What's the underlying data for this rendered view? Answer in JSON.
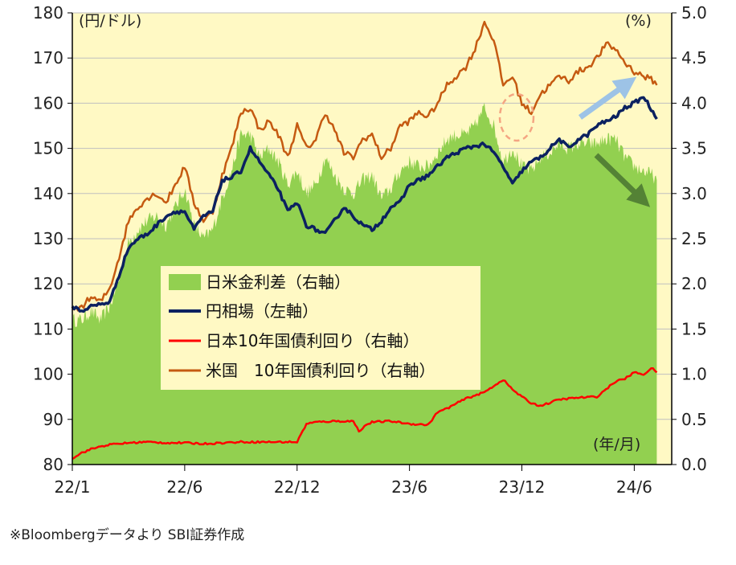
{
  "chart_data": {
    "type": "line",
    "title": "",
    "left_axis": {
      "unit": "(円/ドル)",
      "min": 80,
      "max": 180,
      "step": 10,
      "ticks": [
        "80",
        "90",
        "100",
        "110",
        "120",
        "130",
        "140",
        "150",
        "160",
        "170",
        "180"
      ]
    },
    "right_axis": {
      "unit": "(%)",
      "min": 0.0,
      "max": 5.0,
      "step": 0.5,
      "ticks": [
        "0.0",
        "0.5",
        "1.0",
        "1.5",
        "2.0",
        "2.5",
        "3.0",
        "3.5",
        "4.0",
        "4.5",
        "5.0"
      ]
    },
    "x_axis": {
      "unit": "(年/月)",
      "min_month": 0,
      "max_month": 32,
      "ticks": [
        {
          "label": "22/1",
          "month": 0
        },
        {
          "label": "22/6",
          "month": 6
        },
        {
          "label": "22/12",
          "month": 12
        },
        {
          "label": "23/6",
          "month": 18
        },
        {
          "label": "23/12",
          "month": 24
        },
        {
          "label": "24/6",
          "month": 30
        }
      ]
    },
    "legend": [
      "日米金利差（右軸）",
      "円相場（左軸）",
      "日本10年国債利回り（右軸）",
      "米国　10年国債利回り（右軸）"
    ],
    "colors": {
      "spread": "#92d050",
      "usdjpy": "#0b2160",
      "jgb": "#ff0000",
      "ust": "#c55a11",
      "plot_bg": "#fff9c4",
      "arrow_up": "#9dc3e6",
      "arrow_down": "#548235",
      "circle": "#f4a582"
    },
    "series": [
      {
        "name": "円相場",
        "axis": "left",
        "x": [
          0,
          0.5,
          1,
          1.5,
          2,
          2.5,
          3,
          3.5,
          4,
          4.5,
          5,
          5.5,
          6,
          6.5,
          7,
          7.5,
          8,
          8.5,
          9,
          9.5,
          10,
          10.5,
          11,
          11.5,
          12,
          12.5,
          13,
          13.5,
          14,
          14.5,
          15,
          15.5,
          16,
          16.5,
          17,
          17.5,
          18,
          18.5,
          19,
          19.5,
          20,
          20.5,
          21,
          21.5,
          22,
          22.5,
          23,
          23.5,
          24,
          24.5,
          25,
          25.5,
          26,
          26.5,
          27,
          27.5,
          28,
          28.5,
          29,
          29.5,
          30,
          30.5,
          31,
          31.2
        ],
        "values": [
          115,
          114,
          115,
          115.5,
          116,
          122,
          128,
          130,
          131,
          133,
          135,
          136,
          136,
          132,
          135,
          136,
          143,
          143.5,
          145,
          150,
          147,
          144,
          141,
          136,
          138,
          133,
          132,
          131,
          134,
          137,
          135,
          133,
          132,
          134,
          137,
          138,
          142,
          143,
          144,
          146,
          148,
          149,
          150,
          150.5,
          151,
          149,
          146,
          142,
          145,
          147,
          148,
          150,
          152,
          150,
          152,
          153,
          155,
          156,
          157,
          159,
          160,
          161.5,
          158,
          156.5
        ]
      },
      {
        "name": "日本10年国債利回り",
        "axis": "right",
        "x": [
          0,
          0.5,
          1,
          1.5,
          2,
          3,
          4,
          5,
          6,
          7,
          8,
          9,
          10,
          11,
          12,
          12.5,
          13,
          14,
          15,
          15.3,
          15.7,
          16,
          17,
          18,
          19,
          19.5,
          20,
          21,
          22,
          22.5,
          23,
          23.5,
          24,
          24.5,
          25,
          26,
          27,
          28,
          29,
          29.5,
          30,
          30.5,
          31,
          31.2
        ],
        "values": [
          0.07,
          0.13,
          0.17,
          0.2,
          0.22,
          0.24,
          0.25,
          0.24,
          0.24,
          0.23,
          0.24,
          0.25,
          0.25,
          0.25,
          0.25,
          0.45,
          0.47,
          0.48,
          0.48,
          0.37,
          0.44,
          0.47,
          0.48,
          0.45,
          0.44,
          0.58,
          0.62,
          0.73,
          0.8,
          0.87,
          0.94,
          0.83,
          0.75,
          0.68,
          0.65,
          0.72,
          0.74,
          0.75,
          0.92,
          0.95,
          1.02,
          1.0,
          1.07,
          1.02
        ]
      },
      {
        "name": "米国10年国債利回り",
        "axis": "right",
        "x": [
          0,
          0.5,
          1,
          1.5,
          2,
          2.5,
          3,
          3.5,
          4,
          4.5,
          5,
          5.5,
          6,
          6.5,
          7,
          7.5,
          8,
          8.5,
          9,
          9.5,
          10,
          10.5,
          11,
          11.5,
          12,
          12.5,
          13,
          13.5,
          14,
          14.5,
          15,
          15.5,
          16,
          16.5,
          17,
          17.5,
          18,
          18.5,
          19,
          19.5,
          20,
          20.5,
          21,
          21.5,
          22,
          22.5,
          23,
          23.5,
          24,
          24.5,
          25,
          25.5,
          26,
          26.5,
          27,
          27.5,
          28,
          28.5,
          29,
          29.5,
          30,
          30.5,
          31,
          31.2
        ],
        "values": [
          1.7,
          1.75,
          1.85,
          1.8,
          1.95,
          2.3,
          2.7,
          2.85,
          2.95,
          3.0,
          2.9,
          3.1,
          3.3,
          2.9,
          2.7,
          2.8,
          3.2,
          3.5,
          3.9,
          3.95,
          3.7,
          3.8,
          3.65,
          3.4,
          3.75,
          3.5,
          3.6,
          3.9,
          3.7,
          3.45,
          3.4,
          3.6,
          3.65,
          3.4,
          3.5,
          3.75,
          3.8,
          3.9,
          3.85,
          4.0,
          4.2,
          4.3,
          4.4,
          4.6,
          4.9,
          4.7,
          4.2,
          4.3,
          4.0,
          3.9,
          4.1,
          4.2,
          4.3,
          4.25,
          4.35,
          4.4,
          4.5,
          4.65,
          4.6,
          4.45,
          4.35,
          4.3,
          4.25,
          4.2
        ]
      }
    ],
    "spread_series": {
      "name": "日米金利差",
      "axis": "right",
      "x": [
        0,
        0.5,
        1,
        1.5,
        2,
        2.5,
        3,
        3.5,
        4,
        4.5,
        5,
        5.5,
        6,
        6.5,
        7,
        7.5,
        8,
        8.5,
        9,
        9.5,
        10,
        10.5,
        11,
        11.5,
        12,
        12.5,
        13,
        13.5,
        14,
        14.5,
        15,
        15.5,
        16,
        16.5,
        17,
        17.5,
        18,
        18.5,
        19,
        19.5,
        20,
        20.5,
        21,
        21.5,
        22,
        22.5,
        23,
        23.5,
        24,
        24.5,
        25,
        25.5,
        26,
        26.5,
        27,
        27.5,
        28,
        28.5,
        29,
        29.5,
        30,
        30.5,
        31,
        31.2
      ],
      "values": [
        1.6,
        1.6,
        1.7,
        1.6,
        1.75,
        2.05,
        2.45,
        2.6,
        2.7,
        2.75,
        2.65,
        2.85,
        3.05,
        2.65,
        2.5,
        2.6,
        2.95,
        3.25,
        3.65,
        3.65,
        3.4,
        3.5,
        3.35,
        3.1,
        3.25,
        3.0,
        3.1,
        3.4,
        3.2,
        3.05,
        3.0,
        3.15,
        3.2,
        2.95,
        3.05,
        3.25,
        3.35,
        3.3,
        3.3,
        3.45,
        3.6,
        3.65,
        3.65,
        3.75,
        3.95,
        3.75,
        3.35,
        3.5,
        3.3,
        3.25,
        3.4,
        3.45,
        3.55,
        3.5,
        3.55,
        3.55,
        3.55,
        3.6,
        3.6,
        3.4,
        3.3,
        3.25,
        3.2,
        3.15
      ]
    }
  },
  "source_note": "※Bloombergデータより SBI証券作成"
}
